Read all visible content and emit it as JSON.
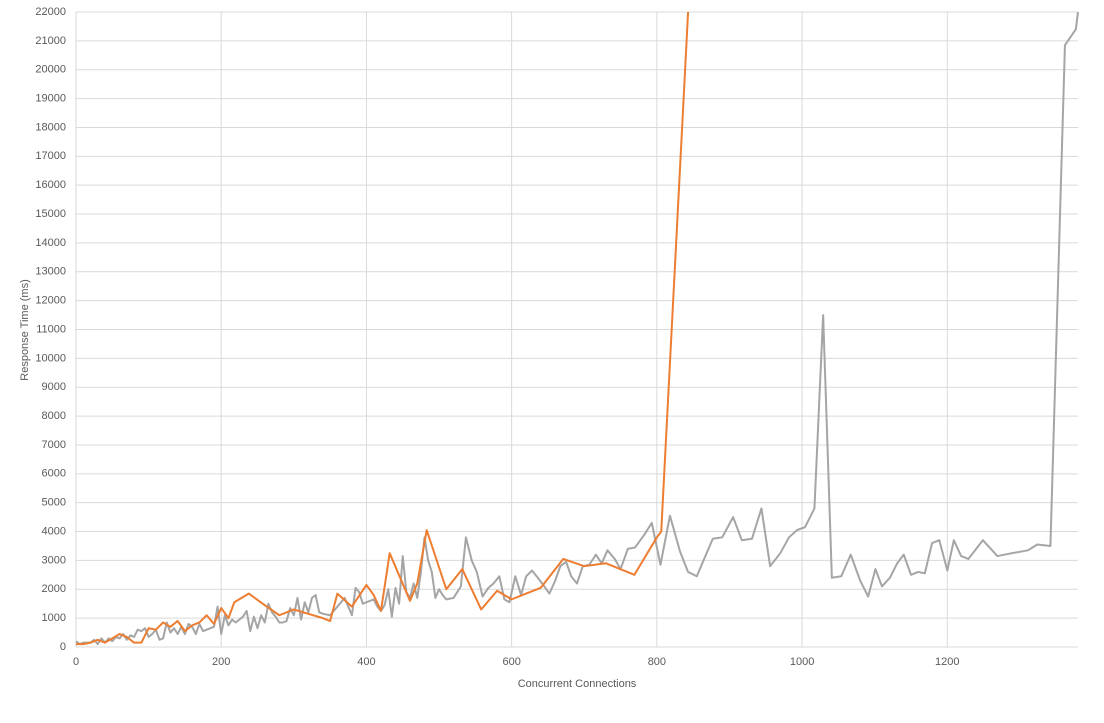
{
  "chart_data": {
    "type": "line",
    "x_label": "Concurrent Connections",
    "y_label": "Response Time (ms)",
    "xlim": [
      0,
      1380
    ],
    "xticks": [
      0,
      200,
      400,
      600,
      800,
      1000,
      1200
    ],
    "ylim": [
      0,
      22000
    ],
    "yticks": [
      0,
      1000,
      2000,
      3000,
      4000,
      5000,
      6000,
      7000,
      8000,
      9000,
      10000,
      11000,
      12000,
      13000,
      14000,
      15000,
      16000,
      17000,
      18000,
      19000,
      20000,
      21000,
      22000
    ],
    "grid": true,
    "series": [
      {
        "color": "#a5a5a5",
        "x": [
          0,
          5,
          10,
          20,
          25,
          30,
          35,
          40,
          45,
          50,
          55,
          60,
          65,
          70,
          75,
          80,
          85,
          90,
          95,
          100,
          105,
          110,
          115,
          120,
          125,
          130,
          135,
          140,
          145,
          150,
          155,
          160,
          165,
          170,
          175,
          180,
          185,
          190,
          195,
          200,
          205,
          210,
          215,
          220,
          225,
          230,
          235,
          240,
          245,
          250,
          255,
          260,
          265,
          270,
          275,
          280,
          285,
          290,
          295,
          300,
          305,
          310,
          315,
          320,
          325,
          330,
          335,
          340,
          350,
          360,
          370,
          380,
          385,
          390,
          395,
          405,
          410,
          415,
          420,
          425,
          430,
          435,
          440,
          445,
          450,
          455,
          460,
          465,
          470,
          475,
          480,
          485,
          490,
          495,
          500,
          505,
          510,
          520,
          530,
          537,
          545,
          552,
          560,
          568,
          575,
          583,
          590,
          597,
          605,
          613,
          620,
          628,
          636,
          645,
          652,
          660,
          667,
          675,
          682,
          690,
          698,
          707,
          716,
          724,
          732,
          742,
          750,
          760,
          770,
          783,
          793,
          805,
          818,
          832,
          843,
          855,
          877,
          890,
          905,
          917,
          931,
          944,
          956,
          970,
          982,
          993,
          1004,
          1017,
          1029,
          1041,
          1054,
          1067,
          1080,
          1091,
          1101,
          1110,
          1121,
          1131,
          1140,
          1150,
          1160,
          1169,
          1179,
          1189,
          1200,
          1209,
          1219,
          1229,
          1249,
          1269,
          1289,
          1311,
          1324,
          1342,
          1362,
          1377,
          1380
        ],
        "values": [
          200,
          100,
          150,
          150,
          250,
          100,
          300,
          150,
          300,
          200,
          350,
          300,
          450,
          250,
          400,
          350,
          600,
          550,
          650,
          350,
          450,
          600,
          250,
          300,
          850,
          500,
          650,
          450,
          700,
          450,
          800,
          700,
          450,
          800,
          550,
          600,
          650,
          700,
          1400,
          450,
          1100,
          750,
          950,
          850,
          950,
          1050,
          1250,
          550,
          1050,
          650,
          1100,
          850,
          1500,
          1200,
          1050,
          850,
          850,
          900,
          1350,
          1100,
          1700,
          950,
          1550,
          1200,
          1700,
          1800,
          1200,
          1150,
          1100,
          1400,
          1700,
          1100,
          2050,
          1900,
          1500,
          1600,
          1650,
          1400,
          1250,
          1450,
          2000,
          1050,
          2050,
          1500,
          3150,
          1900,
          1700,
          2200,
          1700,
          2600,
          3800,
          3000,
          2600,
          1700,
          2000,
          1800,
          1650,
          1700,
          2100,
          3800,
          3000,
          2600,
          1750,
          2050,
          2200,
          2450,
          1650,
          1550,
          2450,
          1800,
          2450,
          2650,
          2400,
          2100,
          1850,
          2300,
          2800,
          2950,
          2450,
          2200,
          2800,
          2850,
          3200,
          2900,
          3350,
          3050,
          2700,
          3400,
          3450,
          3900,
          4300,
          2850,
          4550,
          3300,
          2600,
          2450,
          3750,
          3800,
          4500,
          3700,
          3750,
          4800,
          2800,
          3250,
          3800,
          4050,
          4150,
          4800,
          11500,
          2400,
          2450,
          3200,
          2300,
          1750,
          2700,
          2100,
          2400,
          2900,
          3200,
          2500,
          2600,
          2550,
          3600,
          3700,
          2650,
          3700,
          3150,
          3050,
          3700,
          3150,
          3250,
          3350,
          3550,
          3500,
          20850,
          21400,
          22000
        ]
      },
      {
        "color": "#ed7d31",
        "x": [
          0,
          10,
          20,
          30,
          40,
          50,
          60,
          70,
          80,
          90,
          100,
          110,
          120,
          130,
          140,
          150,
          160,
          170,
          180,
          190,
          200,
          210,
          218,
          238,
          260,
          280,
          300,
          320,
          340,
          350,
          360,
          380,
          400,
          410,
          420,
          432,
          460,
          470,
          483,
          510,
          532,
          558,
          580,
          600,
          620,
          640,
          671,
          700,
          730,
          769,
          800,
          806,
          843
        ],
        "values": [
          100,
          100,
          150,
          250,
          150,
          300,
          450,
          350,
          150,
          150,
          650,
          600,
          850,
          700,
          900,
          550,
          750,
          850,
          1100,
          800,
          1350,
          1000,
          1550,
          1850,
          1450,
          1100,
          1300,
          1150,
          1000,
          900,
          1850,
          1400,
          2150,
          1800,
          1250,
          3250,
          1600,
          2200,
          4050,
          2000,
          2700,
          1300,
          1950,
          1650,
          1850,
          2050,
          3050,
          2800,
          2900,
          2500,
          3800,
          4000,
          22000
        ]
      }
    ]
  }
}
